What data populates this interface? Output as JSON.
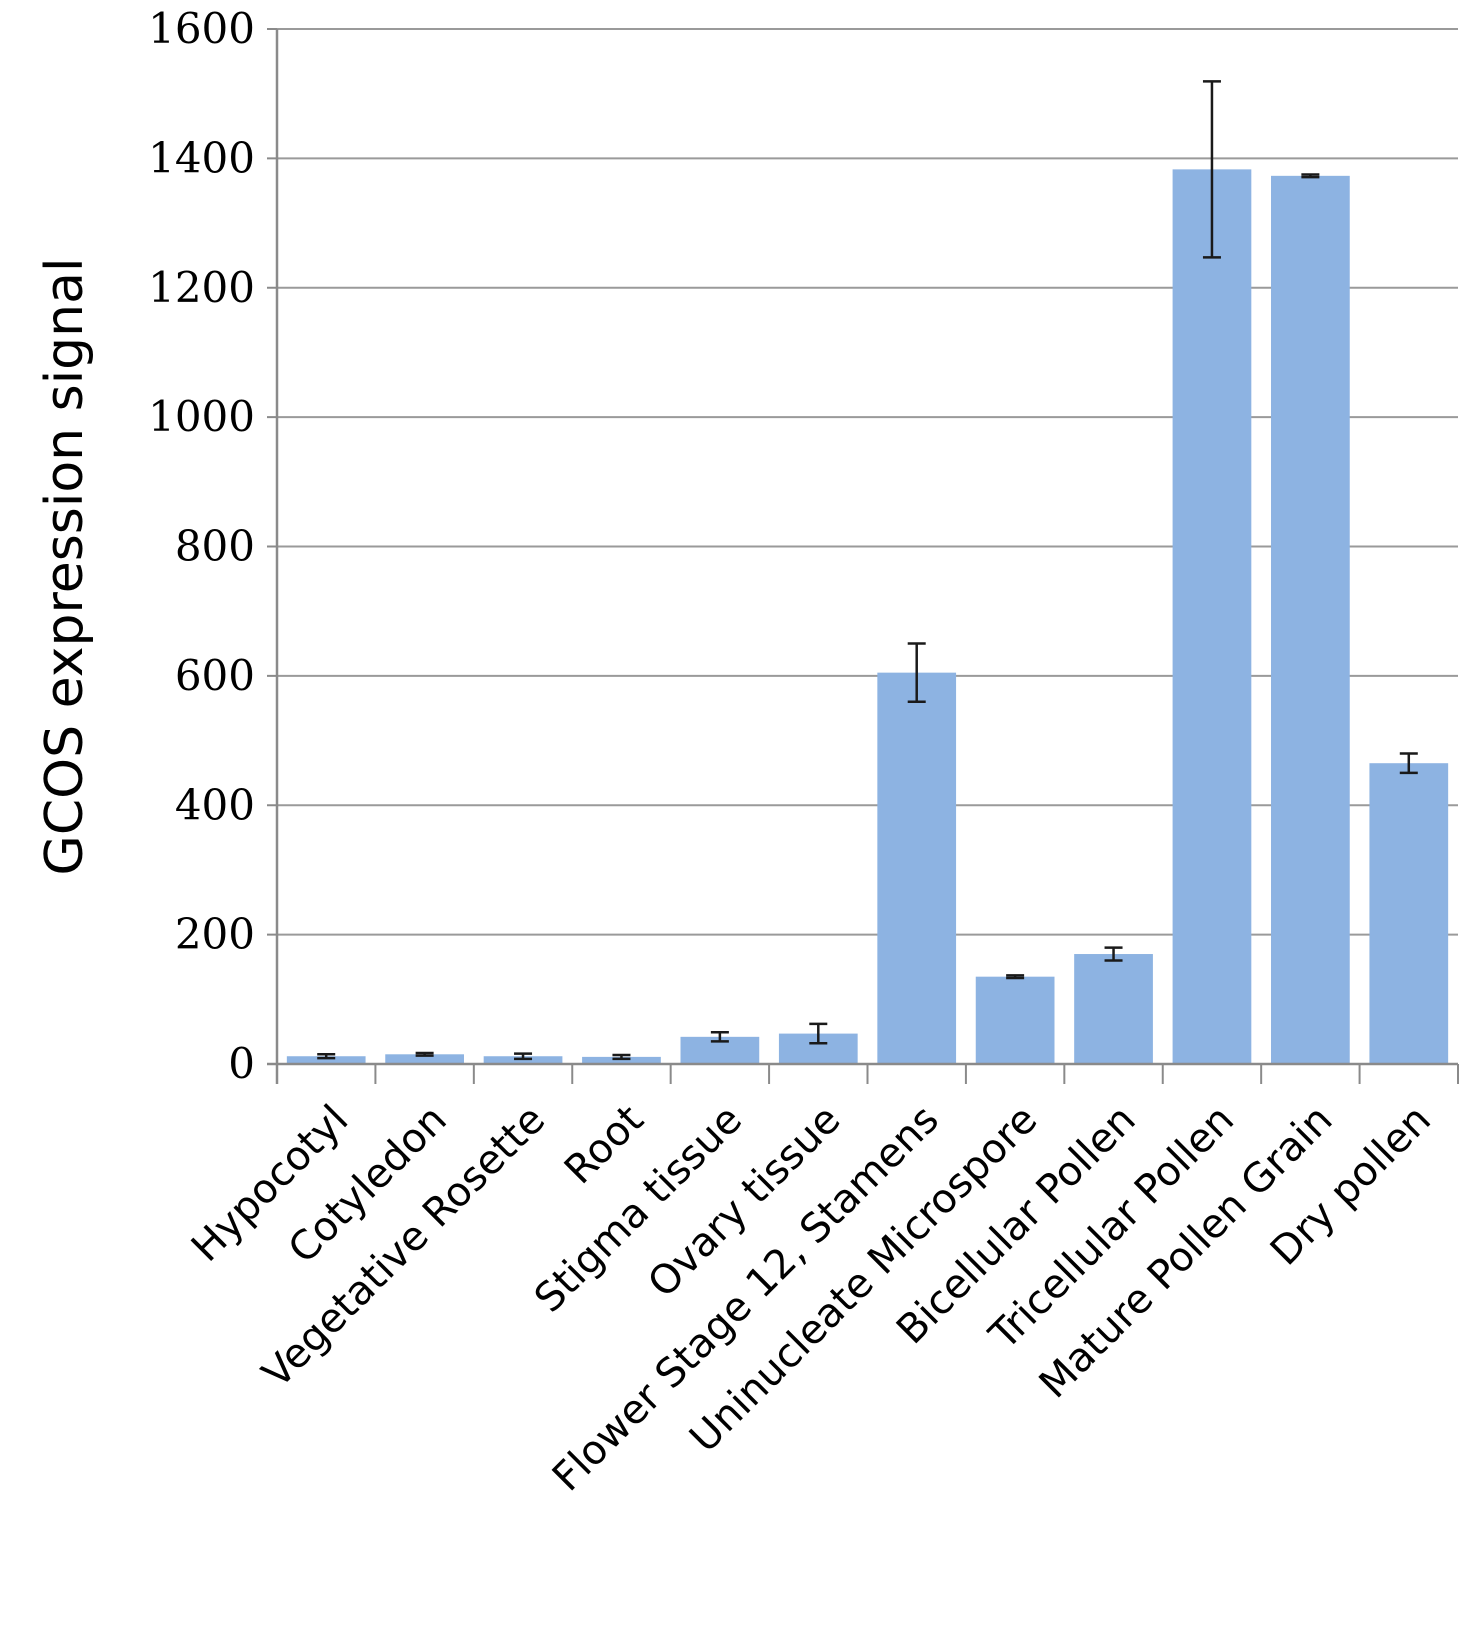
{
  "chart_data": {
    "type": "bar",
    "title": "",
    "xlabel": "",
    "ylabel": "GCOS expression signal",
    "ylim": [
      0,
      1600
    ],
    "yticks": [
      0,
      200,
      400,
      600,
      800,
      1000,
      1200,
      1400,
      1600
    ],
    "grid": true,
    "legend": "none",
    "bar_color": "#8db3e2",
    "categories": [
      "Hypocotyl",
      "Cotyledon",
      "Vegetative Rosette",
      "Root",
      "Stigma tissue",
      "Ovary tissue",
      "Flower Stage 12, Stamens",
      "Uninucleate Microspore",
      "Bicellular Pollen",
      "Tricellular Pollen",
      "Mature Pollen Grain",
      "Dry pollen"
    ],
    "values": [
      12,
      15,
      12,
      11,
      42,
      47,
      605,
      135,
      170,
      1383,
      1373,
      465
    ],
    "error": [
      3,
      2,
      4,
      3,
      7,
      15,
      45,
      2,
      10,
      136,
      2,
      15
    ]
  }
}
